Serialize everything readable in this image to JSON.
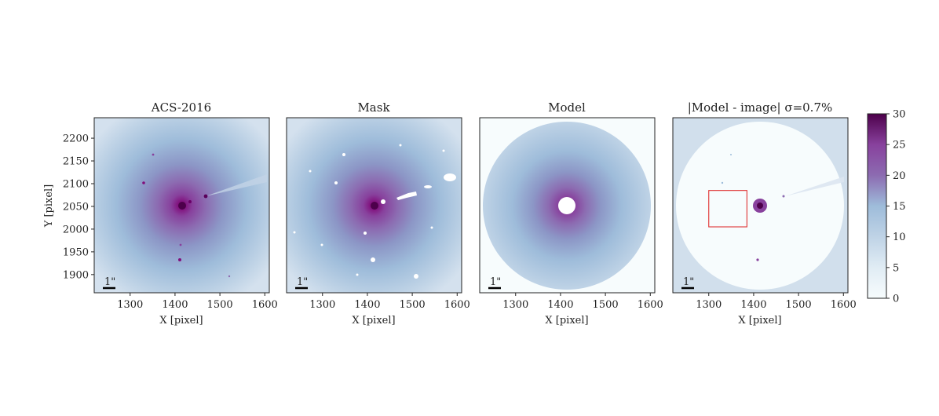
{
  "chart_data": {
    "type": "heatmap",
    "colormap": "BuPu",
    "colors": {
      "frame": "#222222",
      "box": "#e03030",
      "background": "#ffffff"
    },
    "panels": [
      {
        "title": "ACS-2016",
        "xlabel": "X [pixel]",
        "ylabel": "Y [pixel]",
        "xlim": [
          1220,
          1610
        ],
        "ylim": [
          1860,
          2245
        ],
        "xticks": [
          1300,
          1400,
          1500,
          1600
        ],
        "yticks": [
          1900,
          1950,
          2000,
          2050,
          2100,
          2150,
          2200
        ],
        "scalebar": "1\"",
        "center": [
          1415,
          2050
        ],
        "content": "galaxy image with point sources and diffraction feature"
      },
      {
        "title": "Mask",
        "xlabel": "X [pixel]",
        "ylabel": "",
        "xlim": [
          1220,
          1610
        ],
        "ylim": [
          1860,
          2245
        ],
        "xticks": [
          1300,
          1400,
          1500,
          1600
        ],
        "scalebar": "1\"",
        "center": [
          1415,
          2050
        ],
        "content": "image with masked sources shown in white"
      },
      {
        "title": "Model",
        "xlabel": "X [pixel]",
        "ylabel": "",
        "xlim": [
          1220,
          1610
        ],
        "ylim": [
          1860,
          2245
        ],
        "xticks": [
          1300,
          1400,
          1500,
          1600
        ],
        "scalebar": "1\"",
        "center": [
          1415,
          2050
        ],
        "content": "circular isophote model with masked core"
      },
      {
        "title": "|Model - image| σ=0.7%",
        "xlabel": "X [pixel]",
        "ylabel": "",
        "xlim": [
          1220,
          1610
        ],
        "ylim": [
          1860,
          2245
        ],
        "xticks": [
          1300,
          1400,
          1500,
          1600
        ],
        "scalebar": "1\"",
        "center": [
          1415,
          2050
        ],
        "box": {
          "x": [
            1300,
            1385
          ],
          "y": [
            2005,
            2085
          ]
        },
        "content": "residual map"
      }
    ],
    "colorbar": {
      "range": [
        0,
        30
      ],
      "ticks": [
        0,
        5,
        10,
        15,
        20,
        25,
        30
      ]
    }
  }
}
